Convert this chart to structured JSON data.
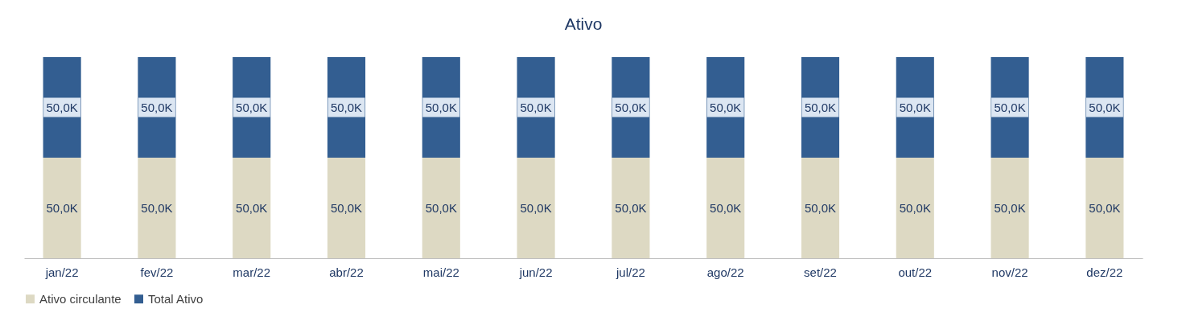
{
  "chart_data": {
    "type": "bar",
    "title": "Ativo",
    "stacked": true,
    "tick_labels": "x",
    "legend": "bottom",
    "categories": [
      "jan/22",
      "fev/22",
      "mar/22",
      "abr/22",
      "mai/22",
      "jun/22",
      "jul/22",
      "ago/22",
      "set/22",
      "out/22",
      "nov/22",
      "dez/22"
    ],
    "series": [
      {
        "name": "Ativo circulante",
        "color": "#ddd9c3",
        "values": [
          50000,
          50000,
          50000,
          50000,
          50000,
          50000,
          50000,
          50000,
          50000,
          50000,
          50000,
          50000
        ],
        "value_labels": [
          "50,0K",
          "50,0K",
          "50,0K",
          "50,0K",
          "50,0K",
          "50,0K",
          "50,0K",
          "50,0K",
          "50,0K",
          "50,0K",
          "50,0K",
          "50,0K"
        ]
      },
      {
        "name": "Total Ativo",
        "color": "#335e91",
        "values": [
          50000,
          50000,
          50000,
          50000,
          50000,
          50000,
          50000,
          50000,
          50000,
          50000,
          50000,
          50000
        ],
        "value_labels": [
          "50,0K",
          "50,0K",
          "50,0K",
          "50,0K",
          "50,0K",
          "50,0K",
          "50,0K",
          "50,0K",
          "50,0K",
          "50,0K",
          "50,0K",
          "50,0K"
        ]
      }
    ]
  }
}
